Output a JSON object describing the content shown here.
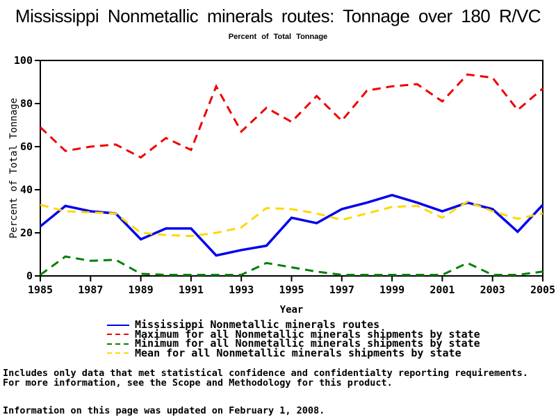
{
  "title": "Mississippi Nonmetallic minerals routes: Tonnage over 180 R/VC",
  "subtitle": "Percent of Total Tonnage",
  "chart_data": {
    "type": "line",
    "x": [
      1985,
      1986,
      1987,
      1988,
      1989,
      1990,
      1991,
      1992,
      1993,
      1994,
      1995,
      1996,
      1997,
      1998,
      1999,
      2000,
      2001,
      2002,
      2003,
      2004,
      2005
    ],
    "series": [
      {
        "name": "Mississippi Nonmetallic minerals routes",
        "color": "#0000ee",
        "dash": "solid",
        "values": [
          23,
          32.5,
          30,
          29,
          17,
          22,
          22,
          9.5,
          12,
          14,
          27,
          24.5,
          31,
          34,
          37.5,
          34,
          30,
          34,
          31,
          20.5,
          33
        ]
      },
      {
        "name": "Maximum for all Nonmetallic minerals shipments by state",
        "color": "#ee0000",
        "dash": "dashed",
        "values": [
          69,
          58,
          60,
          61,
          55,
          64,
          58.5,
          88,
          67,
          78,
          71.5,
          83.5,
          72,
          86,
          88,
          89,
          81,
          93.5,
          92,
          77,
          87
        ]
      },
      {
        "name": "Minimum for all Nonmetallic minerals shipments by state",
        "color": "#008000",
        "dash": "dashed",
        "values": [
          0.5,
          9,
          7,
          7.5,
          1,
          0.5,
          0.5,
          0.5,
          0.5,
          6,
          4,
          2,
          0.5,
          0.5,
          0.5,
          0.5,
          0.5,
          6,
          0.5,
          0.5,
          2
        ]
      },
      {
        "name": "Mean for all Nonmetallic minerals shipments by state",
        "color": "#ffd700",
        "dash": "dashed",
        "values": [
          33,
          30,
          29.5,
          29,
          20,
          19,
          18.5,
          20,
          22.5,
          31.5,
          31,
          29,
          26,
          29,
          32,
          32.5,
          27,
          34.5,
          30,
          26.5,
          29
        ]
      }
    ],
    "xlabel": "Year",
    "ylabel": "Percent of Total Tonnage",
    "ylim": [
      0,
      100
    ],
    "yticks": [
      0,
      20,
      40,
      60,
      80,
      100
    ],
    "xticks": [
      1985,
      1987,
      1989,
      1991,
      1993,
      1995,
      1997,
      1999,
      2001,
      2003,
      2005
    ],
    "grid": false,
    "legend_position": "bottom"
  },
  "footnotes": [
    "Includes only data that met statistical confidence and confidentialty reporting requirements.",
    "For more information, see the Scope and Methodology for this product."
  ],
  "updated_note": "Information on this page was updated on February 1, 2008."
}
